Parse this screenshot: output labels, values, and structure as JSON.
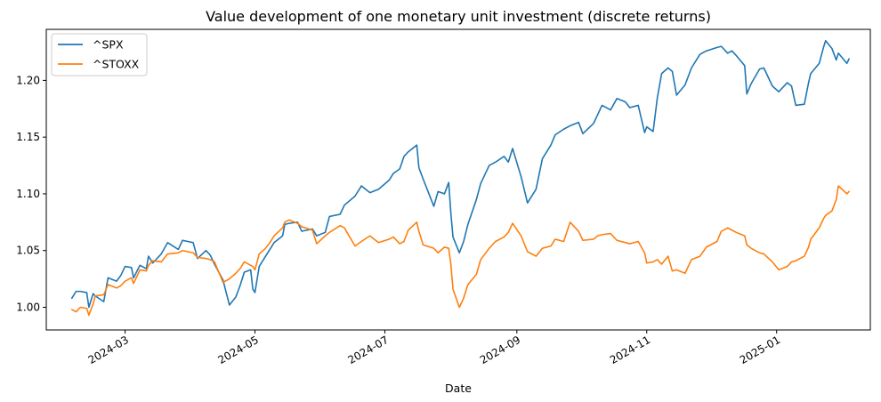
{
  "chart_data": {
    "type": "line",
    "title": "Value development of one monetary unit investment (discrete returns)",
    "xlabel": "Date",
    "ylabel": "",
    "x_type": "date",
    "xlim": [
      "2024-01-24",
      "2025-02-14"
    ],
    "ylim": [
      0.98,
      1.245
    ],
    "yticks": [
      1.0,
      1.05,
      1.1,
      1.15,
      1.2
    ],
    "ytick_labels": [
      "1.00",
      "1.05",
      "1.10",
      "1.15",
      "1.20"
    ],
    "xticks": [
      "2024-03-01",
      "2024-05-01",
      "2024-07-01",
      "2024-09-01",
      "2024-11-01",
      "2025-01-01"
    ],
    "xtick_labels": [
      "2024-03",
      "2024-05",
      "2024-07",
      "2024-09",
      "2024-11",
      "2025-01"
    ],
    "grid": false,
    "legend_position": "top-left",
    "series": [
      {
        "name": "^SPX",
        "color": "#1f77b4",
        "points": [
          [
            "2024-02-05",
            1.008
          ],
          [
            "2024-02-07",
            1.014
          ],
          [
            "2024-02-09",
            1.014
          ],
          [
            "2024-02-12",
            1.013
          ],
          [
            "2024-02-13",
            1.0
          ],
          [
            "2024-02-15",
            1.012
          ],
          [
            "2024-02-16",
            1.01
          ],
          [
            "2024-02-20",
            1.005
          ],
          [
            "2024-02-22",
            1.026
          ],
          [
            "2024-02-26",
            1.023
          ],
          [
            "2024-02-28",
            1.028
          ],
          [
            "2024-03-01",
            1.036
          ],
          [
            "2024-03-04",
            1.035
          ],
          [
            "2024-03-05",
            1.026
          ],
          [
            "2024-03-08",
            1.037
          ],
          [
            "2024-03-11",
            1.034
          ],
          [
            "2024-03-12",
            1.045
          ],
          [
            "2024-03-14",
            1.039
          ],
          [
            "2024-03-18",
            1.047
          ],
          [
            "2024-03-21",
            1.057
          ],
          [
            "2024-03-26",
            1.051
          ],
          [
            "2024-03-28",
            1.059
          ],
          [
            "2024-04-02",
            1.057
          ],
          [
            "2024-04-04",
            1.043
          ],
          [
            "2024-04-08",
            1.05
          ],
          [
            "2024-04-10",
            1.046
          ],
          [
            "2024-04-12",
            1.038
          ],
          [
            "2024-04-16",
            1.024
          ],
          [
            "2024-04-19",
            1.002
          ],
          [
            "2024-04-22",
            1.009
          ],
          [
            "2024-04-24",
            1.019
          ],
          [
            "2024-04-26",
            1.031
          ],
          [
            "2024-04-29",
            1.033
          ],
          [
            "2024-04-30",
            1.016
          ],
          [
            "2024-05-01",
            1.013
          ],
          [
            "2024-05-03",
            1.036
          ],
          [
            "2024-05-06",
            1.045
          ],
          [
            "2024-05-08",
            1.051
          ],
          [
            "2024-05-10",
            1.057
          ],
          [
            "2024-05-14",
            1.063
          ],
          [
            "2024-05-15",
            1.073
          ],
          [
            "2024-05-17",
            1.074
          ],
          [
            "2024-05-21",
            1.075
          ],
          [
            "2024-05-23",
            1.067
          ],
          [
            "2024-05-28",
            1.069
          ],
          [
            "2024-05-30",
            1.063
          ],
          [
            "2024-06-03",
            1.066
          ],
          [
            "2024-06-05",
            1.08
          ],
          [
            "2024-06-10",
            1.082
          ],
          [
            "2024-06-12",
            1.09
          ],
          [
            "2024-06-17",
            1.098
          ],
          [
            "2024-06-20",
            1.107
          ],
          [
            "2024-06-24",
            1.101
          ],
          [
            "2024-06-28",
            1.104
          ],
          [
            "2024-07-03",
            1.112
          ],
          [
            "2024-07-05",
            1.118
          ],
          [
            "2024-07-08",
            1.122
          ],
          [
            "2024-07-10",
            1.133
          ],
          [
            "2024-07-12",
            1.137
          ],
          [
            "2024-07-16",
            1.143
          ],
          [
            "2024-07-17",
            1.123
          ],
          [
            "2024-07-19",
            1.113
          ],
          [
            "2024-07-24",
            1.089
          ],
          [
            "2024-07-26",
            1.102
          ],
          [
            "2024-07-29",
            1.1
          ],
          [
            "2024-07-31",
            1.11
          ],
          [
            "2024-08-01",
            1.083
          ],
          [
            "2024-08-02",
            1.062
          ],
          [
            "2024-08-05",
            1.048
          ],
          [
            "2024-08-07",
            1.058
          ],
          [
            "2024-08-09",
            1.073
          ],
          [
            "2024-08-13",
            1.095
          ],
          [
            "2024-08-15",
            1.109
          ],
          [
            "2024-08-19",
            1.125
          ],
          [
            "2024-08-22",
            1.128
          ],
          [
            "2024-08-26",
            1.133
          ],
          [
            "2024-08-28",
            1.128
          ],
          [
            "2024-08-30",
            1.14
          ],
          [
            "2024-09-03",
            1.115
          ],
          [
            "2024-09-06",
            1.092
          ],
          [
            "2024-09-10",
            1.104
          ],
          [
            "2024-09-13",
            1.131
          ],
          [
            "2024-09-17",
            1.143
          ],
          [
            "2024-09-19",
            1.152
          ],
          [
            "2024-09-23",
            1.157
          ],
          [
            "2024-09-26",
            1.16
          ],
          [
            "2024-09-30",
            1.163
          ],
          [
            "2024-10-02",
            1.153
          ],
          [
            "2024-10-07",
            1.162
          ],
          [
            "2024-10-09",
            1.17
          ],
          [
            "2024-10-11",
            1.178
          ],
          [
            "2024-10-15",
            1.174
          ],
          [
            "2024-10-18",
            1.184
          ],
          [
            "2024-10-22",
            1.181
          ],
          [
            "2024-10-24",
            1.176
          ],
          [
            "2024-10-28",
            1.178
          ],
          [
            "2024-10-31",
            1.154
          ],
          [
            "2024-11-01",
            1.159
          ],
          [
            "2024-11-04",
            1.155
          ],
          [
            "2024-11-06",
            1.185
          ],
          [
            "2024-11-08",
            1.206
          ],
          [
            "2024-11-11",
            1.211
          ],
          [
            "2024-11-13",
            1.208
          ],
          [
            "2024-11-15",
            1.187
          ],
          [
            "2024-11-19",
            1.196
          ],
          [
            "2024-11-22",
            1.211
          ],
          [
            "2024-11-26",
            1.223
          ],
          [
            "2024-11-29",
            1.226
          ],
          [
            "2024-12-04",
            1.229
          ],
          [
            "2024-12-06",
            1.23
          ],
          [
            "2024-12-09",
            1.224
          ],
          [
            "2024-12-11",
            1.226
          ],
          [
            "2024-12-13",
            1.222
          ],
          [
            "2024-12-17",
            1.213
          ],
          [
            "2024-12-18",
            1.188
          ],
          [
            "2024-12-20",
            1.197
          ],
          [
            "2024-12-24",
            1.21
          ],
          [
            "2024-12-26",
            1.211
          ],
          [
            "2024-12-30",
            1.195
          ],
          [
            "2025-01-02",
            1.19
          ],
          [
            "2025-01-06",
            1.198
          ],
          [
            "2025-01-08",
            1.195
          ],
          [
            "2025-01-10",
            1.178
          ],
          [
            "2025-01-14",
            1.179
          ],
          [
            "2025-01-16",
            1.198
          ],
          [
            "2025-01-17",
            1.206
          ],
          [
            "2025-01-21",
            1.215
          ],
          [
            "2025-01-23",
            1.229
          ],
          [
            "2025-01-24",
            1.235
          ],
          [
            "2025-01-27",
            1.228
          ],
          [
            "2025-01-29",
            1.218
          ],
          [
            "2025-01-30",
            1.224
          ],
          [
            "2025-02-03",
            1.215
          ],
          [
            "2025-02-04",
            1.219
          ]
        ]
      },
      {
        "name": "^STOXX",
        "color": "#ff7f0e",
        "points": [
          [
            "2024-02-05",
            0.998
          ],
          [
            "2024-02-07",
            0.996
          ],
          [
            "2024-02-09",
            1.0
          ],
          [
            "2024-02-12",
            0.999
          ],
          [
            "2024-02-13",
            0.993
          ],
          [
            "2024-02-15",
            1.003
          ],
          [
            "2024-02-16",
            1.01
          ],
          [
            "2024-02-20",
            1.011
          ],
          [
            "2024-02-22",
            1.02
          ],
          [
            "2024-02-26",
            1.017
          ],
          [
            "2024-02-28",
            1.019
          ],
          [
            "2024-03-01",
            1.023
          ],
          [
            "2024-03-04",
            1.026
          ],
          [
            "2024-03-05",
            1.021
          ],
          [
            "2024-03-08",
            1.033
          ],
          [
            "2024-03-11",
            1.032
          ],
          [
            "2024-03-12",
            1.037
          ],
          [
            "2024-03-14",
            1.041
          ],
          [
            "2024-03-18",
            1.04
          ],
          [
            "2024-03-21",
            1.047
          ],
          [
            "2024-03-26",
            1.048
          ],
          [
            "2024-03-28",
            1.05
          ],
          [
            "2024-04-02",
            1.048
          ],
          [
            "2024-04-04",
            1.044
          ],
          [
            "2024-04-08",
            1.043
          ],
          [
            "2024-04-10",
            1.042
          ],
          [
            "2024-04-12",
            1.04
          ],
          [
            "2024-04-16",
            1.022
          ],
          [
            "2024-04-19",
            1.025
          ],
          [
            "2024-04-22",
            1.03
          ],
          [
            "2024-04-24",
            1.034
          ],
          [
            "2024-04-26",
            1.04
          ],
          [
            "2024-04-29",
            1.037
          ],
          [
            "2024-04-30",
            1.036
          ],
          [
            "2024-05-01",
            1.033
          ],
          [
            "2024-05-03",
            1.047
          ],
          [
            "2024-05-06",
            1.052
          ],
          [
            "2024-05-08",
            1.057
          ],
          [
            "2024-05-10",
            1.063
          ],
          [
            "2024-05-14",
            1.07
          ],
          [
            "2024-05-15",
            1.075
          ],
          [
            "2024-05-17",
            1.077
          ],
          [
            "2024-05-21",
            1.074
          ],
          [
            "2024-05-23",
            1.071
          ],
          [
            "2024-05-28",
            1.068
          ],
          [
            "2024-05-30",
            1.056
          ],
          [
            "2024-06-03",
            1.063
          ],
          [
            "2024-06-05",
            1.066
          ],
          [
            "2024-06-10",
            1.072
          ],
          [
            "2024-06-12",
            1.07
          ],
          [
            "2024-06-17",
            1.054
          ],
          [
            "2024-06-20",
            1.058
          ],
          [
            "2024-06-24",
            1.063
          ],
          [
            "2024-06-28",
            1.057
          ],
          [
            "2024-07-03",
            1.06
          ],
          [
            "2024-07-05",
            1.062
          ],
          [
            "2024-07-08",
            1.056
          ],
          [
            "2024-07-10",
            1.058
          ],
          [
            "2024-07-12",
            1.068
          ],
          [
            "2024-07-16",
            1.075
          ],
          [
            "2024-07-17",
            1.067
          ],
          [
            "2024-07-19",
            1.055
          ],
          [
            "2024-07-24",
            1.052
          ],
          [
            "2024-07-26",
            1.048
          ],
          [
            "2024-07-29",
            1.053
          ],
          [
            "2024-07-31",
            1.052
          ],
          [
            "2024-08-01",
            1.038
          ],
          [
            "2024-08-02",
            1.016
          ],
          [
            "2024-08-05",
            1.0
          ],
          [
            "2024-08-07",
            1.008
          ],
          [
            "2024-08-09",
            1.02
          ],
          [
            "2024-08-13",
            1.029
          ],
          [
            "2024-08-15",
            1.042
          ],
          [
            "2024-08-19",
            1.052
          ],
          [
            "2024-08-22",
            1.058
          ],
          [
            "2024-08-26",
            1.062
          ],
          [
            "2024-08-28",
            1.066
          ],
          [
            "2024-08-30",
            1.074
          ],
          [
            "2024-09-03",
            1.063
          ],
          [
            "2024-09-06",
            1.049
          ],
          [
            "2024-09-10",
            1.045
          ],
          [
            "2024-09-13",
            1.052
          ],
          [
            "2024-09-17",
            1.054
          ],
          [
            "2024-09-19",
            1.06
          ],
          [
            "2024-09-23",
            1.058
          ],
          [
            "2024-09-26",
            1.075
          ],
          [
            "2024-09-30",
            1.067
          ],
          [
            "2024-10-02",
            1.059
          ],
          [
            "2024-10-07",
            1.06
          ],
          [
            "2024-10-09",
            1.063
          ],
          [
            "2024-10-11",
            1.064
          ],
          [
            "2024-10-15",
            1.065
          ],
          [
            "2024-10-18",
            1.059
          ],
          [
            "2024-10-22",
            1.057
          ],
          [
            "2024-10-24",
            1.056
          ],
          [
            "2024-10-28",
            1.058
          ],
          [
            "2024-10-31",
            1.048
          ],
          [
            "2024-11-01",
            1.039
          ],
          [
            "2024-11-04",
            1.04
          ],
          [
            "2024-11-06",
            1.042
          ],
          [
            "2024-11-08",
            1.038
          ],
          [
            "2024-11-11",
            1.045
          ],
          [
            "2024-11-13",
            1.032
          ],
          [
            "2024-11-15",
            1.033
          ],
          [
            "2024-11-19",
            1.03
          ],
          [
            "2024-11-22",
            1.042
          ],
          [
            "2024-11-26",
            1.045
          ],
          [
            "2024-11-29",
            1.053
          ],
          [
            "2024-12-04",
            1.058
          ],
          [
            "2024-12-06",
            1.067
          ],
          [
            "2024-12-09",
            1.07
          ],
          [
            "2024-12-11",
            1.068
          ],
          [
            "2024-12-13",
            1.066
          ],
          [
            "2024-12-17",
            1.063
          ],
          [
            "2024-12-18",
            1.055
          ],
          [
            "2024-12-20",
            1.052
          ],
          [
            "2024-12-24",
            1.048
          ],
          [
            "2024-12-26",
            1.047
          ],
          [
            "2024-12-30",
            1.04
          ],
          [
            "2025-01-02",
            1.033
          ],
          [
            "2025-01-06",
            1.036
          ],
          [
            "2025-01-08",
            1.04
          ],
          [
            "2025-01-10",
            1.041
          ],
          [
            "2025-01-14",
            1.045
          ],
          [
            "2025-01-16",
            1.053
          ],
          [
            "2025-01-17",
            1.06
          ],
          [
            "2025-01-21",
            1.07
          ],
          [
            "2025-01-23",
            1.078
          ],
          [
            "2025-01-24",
            1.081
          ],
          [
            "2025-01-27",
            1.085
          ],
          [
            "2025-01-29",
            1.095
          ],
          [
            "2025-01-30",
            1.107
          ],
          [
            "2025-02-03",
            1.1
          ],
          [
            "2025-02-04",
            1.102
          ]
        ]
      }
    ]
  }
}
